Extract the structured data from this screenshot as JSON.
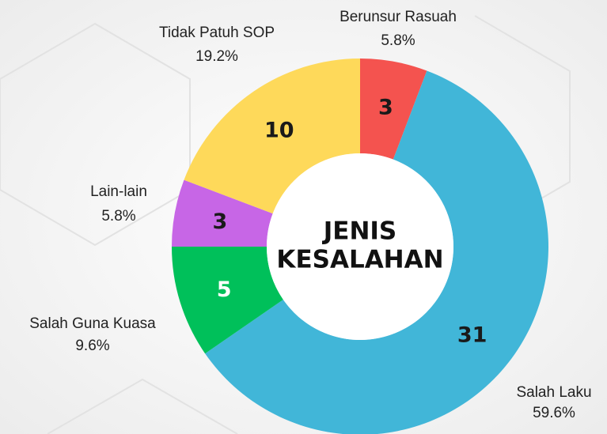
{
  "chart_data": {
    "type": "donut",
    "center_title": [
      "JENIS",
      "KESALAHAN"
    ],
    "categories": [
      "Berunsur Rasuah",
      "Salah Laku",
      "Salah Guna Kuasa",
      "Lain-lain",
      "Tidak Patuh SOP"
    ],
    "values": [
      3,
      31,
      5,
      3,
      10
    ],
    "percent_labels": [
      "5.8%",
      "59.6%",
      "9.6%",
      "5.8%",
      "19.2%"
    ],
    "colors": [
      "#f4534f",
      "#41b6d8",
      "#00c05a",
      "#c766e6",
      "#fed95a"
    ],
    "value_label_colors": [
      "#1a1a1a",
      "#1a1a1a",
      "#ffffff",
      "#1a1a1a",
      "#1a1a1a"
    ]
  }
}
